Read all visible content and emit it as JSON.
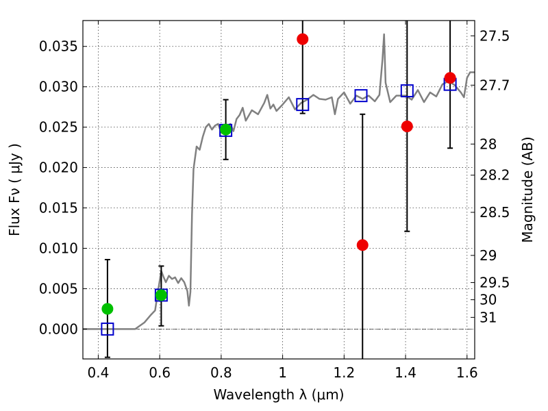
{
  "chart_data": {
    "type": "scatter",
    "xlabel": "Wavelength  λ (μm)",
    "ylabel": "Flux  Fν  ( μJy )",
    "y2label": "Magnitude (AB)",
    "xlim": [
      0.35,
      1.625
    ],
    "ylim": [
      -0.0037,
      0.0382
    ],
    "grid": true,
    "x_ticks": [
      {
        "value": 0.4,
        "label": "0.4"
      },
      {
        "value": 0.6,
        "label": "0.6"
      },
      {
        "value": 0.8,
        "label": "0.8"
      },
      {
        "value": 1.0,
        "label": "1"
      },
      {
        "value": 1.2,
        "label": "1.2"
      },
      {
        "value": 1.4,
        "label": "1.4"
      },
      {
        "value": 1.6,
        "label": "1.6"
      }
    ],
    "y_ticks": [
      {
        "value": 0.0,
        "label": "0.000"
      },
      {
        "value": 0.005,
        "label": "0.005"
      },
      {
        "value": 0.01,
        "label": "0.010"
      },
      {
        "value": 0.015,
        "label": "0.015"
      },
      {
        "value": 0.02,
        "label": "0.020"
      },
      {
        "value": 0.025,
        "label": "0.025"
      },
      {
        "value": 0.03,
        "label": "0.030"
      },
      {
        "value": 0.035,
        "label": "0.035"
      }
    ],
    "y2_ticks": [
      {
        "value": 27.5,
        "label": "27.5"
      },
      {
        "value": 27.7,
        "label": "27.7"
      },
      {
        "value": 28.0,
        "label": "28"
      },
      {
        "value": 28.2,
        "label": "28.2"
      },
      {
        "value": 28.5,
        "label": "28.5"
      },
      {
        "value": 29.0,
        "label": "29"
      },
      {
        "value": 29.5,
        "label": "29.5"
      },
      {
        "value": 30.0,
        "label": "30"
      },
      {
        "value": 31.0,
        "label": "31"
      }
    ],
    "model_spectrum": {
      "color": "#808080",
      "points": [
        [
          0.35,
          0.0
        ],
        [
          0.52,
          0.0
        ],
        [
          0.55,
          0.0008
        ],
        [
          0.57,
          0.0017
        ],
        [
          0.585,
          0.0023
        ],
        [
          0.595,
          0.0048
        ],
        [
          0.605,
          0.0072
        ],
        [
          0.612,
          0.0065
        ],
        [
          0.62,
          0.0058
        ],
        [
          0.63,
          0.0066
        ],
        [
          0.64,
          0.0062
        ],
        [
          0.65,
          0.0064
        ],
        [
          0.66,
          0.0057
        ],
        [
          0.67,
          0.0063
        ],
        [
          0.68,
          0.0058
        ],
        [
          0.69,
          0.0047
        ],
        [
          0.695,
          0.0029
        ],
        [
          0.7,
          0.0046
        ],
        [
          0.705,
          0.0142
        ],
        [
          0.71,
          0.0198
        ],
        [
          0.72,
          0.0226
        ],
        [
          0.73,
          0.0222
        ],
        [
          0.74,
          0.0238
        ],
        [
          0.75,
          0.025
        ],
        [
          0.76,
          0.0254
        ],
        [
          0.77,
          0.0247
        ],
        [
          0.78,
          0.0252
        ],
        [
          0.79,
          0.0254
        ],
        [
          0.8,
          0.0243
        ],
        [
          0.81,
          0.0249
        ],
        [
          0.82,
          0.0251
        ],
        [
          0.83,
          0.0254
        ],
        [
          0.84,
          0.0245
        ],
        [
          0.85,
          0.026
        ],
        [
          0.86,
          0.0265
        ],
        [
          0.87,
          0.0274
        ],
        [
          0.88,
          0.0258
        ],
        [
          0.9,
          0.0271
        ],
        [
          0.92,
          0.0266
        ],
        [
          0.94,
          0.028
        ],
        [
          0.95,
          0.029
        ],
        [
          0.96,
          0.0273
        ],
        [
          0.97,
          0.0278
        ],
        [
          0.98,
          0.027
        ],
        [
          1.0,
          0.0278
        ],
        [
          1.02,
          0.0287
        ],
        [
          1.04,
          0.0272
        ],
        [
          1.06,
          0.028
        ],
        [
          1.08,
          0.0284
        ],
        [
          1.1,
          0.029
        ],
        [
          1.12,
          0.0285
        ],
        [
          1.14,
          0.0284
        ],
        [
          1.16,
          0.0287
        ],
        [
          1.17,
          0.0266
        ],
        [
          1.18,
          0.0285
        ],
        [
          1.2,
          0.0293
        ],
        [
          1.22,
          0.0279
        ],
        [
          1.24,
          0.0289
        ],
        [
          1.26,
          0.0285
        ],
        [
          1.28,
          0.0289
        ],
        [
          1.3,
          0.0282
        ],
        [
          1.315,
          0.029
        ],
        [
          1.325,
          0.0334
        ],
        [
          1.33,
          0.0365
        ],
        [
          1.335,
          0.0305
        ],
        [
          1.35,
          0.0281
        ],
        [
          1.37,
          0.0289
        ],
        [
          1.4,
          0.0289
        ],
        [
          1.42,
          0.0284
        ],
        [
          1.44,
          0.0296
        ],
        [
          1.46,
          0.0281
        ],
        [
          1.48,
          0.0293
        ],
        [
          1.5,
          0.0288
        ],
        [
          1.52,
          0.0303
        ],
        [
          1.54,
          0.0307
        ],
        [
          1.56,
          0.0302
        ],
        [
          1.58,
          0.0293
        ],
        [
          1.59,
          0.0287
        ],
        [
          1.6,
          0.0311
        ],
        [
          1.61,
          0.0318
        ],
        [
          1.625,
          0.0318
        ]
      ]
    },
    "series": [
      {
        "marker": "open-square",
        "color": "#0000cc",
        "points": [
          {
            "x": 0.43,
            "y": 0.0
          },
          {
            "x": 0.605,
            "y": 0.0042
          },
          {
            "x": 0.815,
            "y": 0.0246
          },
          {
            "x": 1.065,
            "y": 0.0278
          },
          {
            "x": 1.255,
            "y": 0.0289
          },
          {
            "x": 1.405,
            "y": 0.0295
          },
          {
            "x": 1.545,
            "y": 0.0303
          }
        ]
      },
      {
        "marker": "filled-circle",
        "color": "#00c000",
        "points": [
          {
            "x": 0.43,
            "y": 0.0025,
            "err_lo": -0.0035,
            "err_hi": 0.0086
          },
          {
            "x": 0.605,
            "y": 0.0042,
            "err_lo": 0.0004,
            "err_hi": 0.0078
          },
          {
            "x": 0.815,
            "y": 0.0247,
            "err_lo": 0.021,
            "err_hi": 0.0284
          }
        ]
      },
      {
        "marker": "filled-circle",
        "color": "#ee0000",
        "points": [
          {
            "x": 1.065,
            "y": 0.0359,
            "err_lo": 0.0267,
            "err_hi": 0.0382
          },
          {
            "x": 1.26,
            "y": 0.0104,
            "err_lo": -0.0037,
            "err_hi": 0.0266
          },
          {
            "x": 1.405,
            "y": 0.0251,
            "err_lo": 0.0121,
            "err_hi": 0.0382
          },
          {
            "x": 1.545,
            "y": 0.0311,
            "err_lo": 0.0224,
            "err_hi": 0.0382
          }
        ]
      }
    ]
  }
}
